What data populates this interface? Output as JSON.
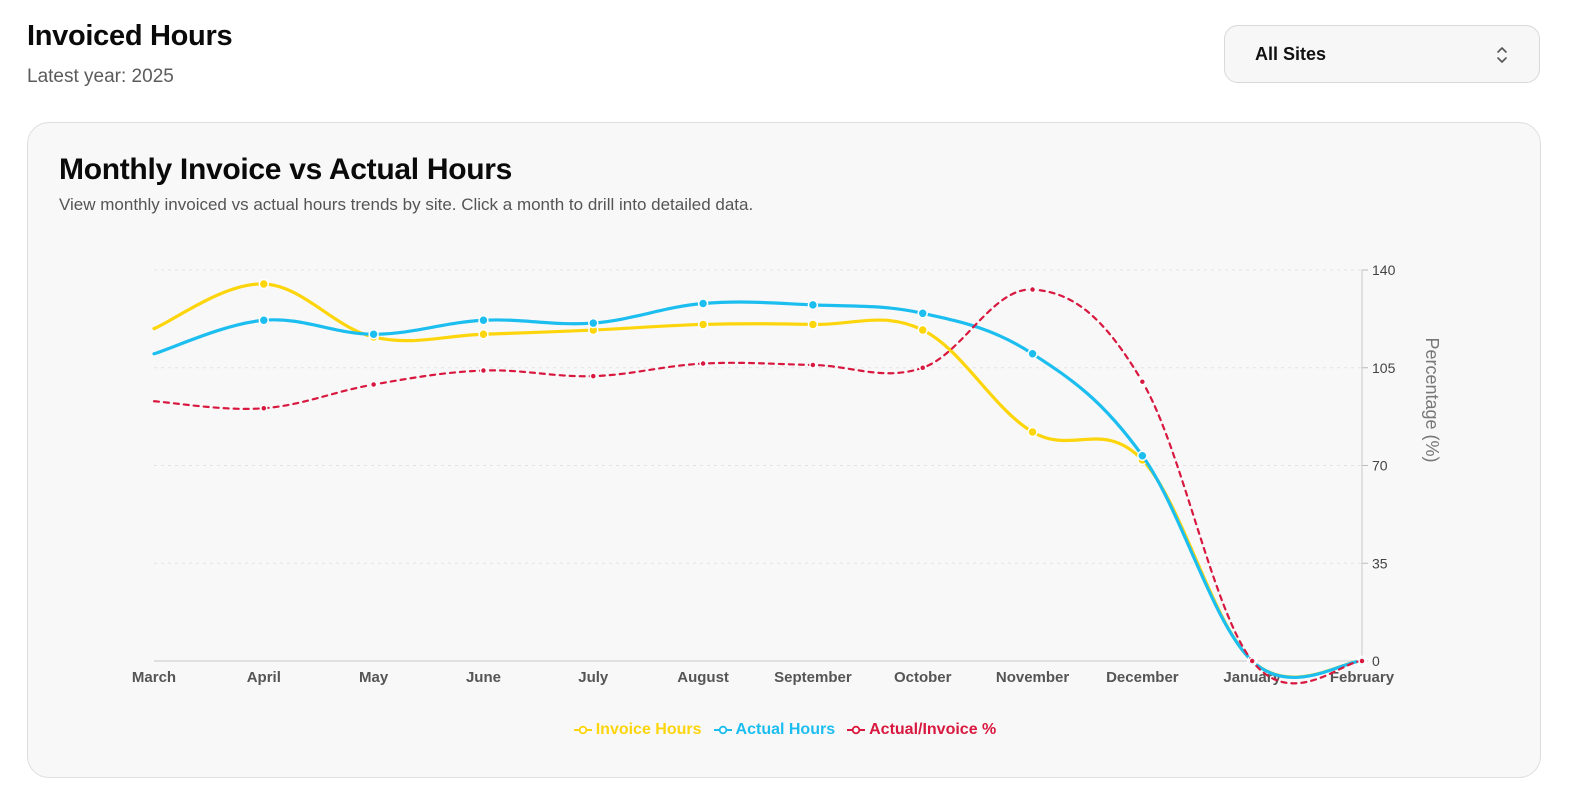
{
  "header": {
    "title": "Invoiced Hours",
    "subtitle": "Latest year: 2025"
  },
  "site_filter": {
    "selected": "All Sites",
    "icon": "chevron-up-down-icon"
  },
  "card": {
    "title": "Monthly Invoice vs Actual Hours",
    "description": "View monthly invoiced vs actual hours trends by site. Click a month to drill into detailed data."
  },
  "chart_data": {
    "type": "line",
    "categories": [
      "March",
      "April",
      "May",
      "June",
      "July",
      "August",
      "September",
      "October",
      "November",
      "December",
      "January",
      "February"
    ],
    "y_right": {
      "label": "Percentage (%)",
      "ticks": [
        0,
        35,
        70,
        105,
        140
      ],
      "lim": [
        0,
        140
      ]
    },
    "grid": "horizontal-dashed",
    "legend_position": "bottom-center",
    "series": [
      {
        "name": "Invoice Hours",
        "color": "#fdd50d",
        "dash": false,
        "values": [
          119,
          135,
          116,
          117,
          118.5,
          120.5,
          120.5,
          118.5,
          82,
          72,
          0,
          0
        ]
      },
      {
        "name": "Actual Hours",
        "color": "#1cbef0",
        "dash": false,
        "values": [
          110,
          122,
          117,
          122,
          121,
          128,
          127.5,
          124.5,
          110,
          73.5,
          0,
          0
        ]
      },
      {
        "name": "Actual/Invoice %",
        "color": "#d8183f",
        "dash": true,
        "values": [
          93,
          90.5,
          99,
          104,
          102,
          106.5,
          106,
          105,
          133,
          100,
          0,
          0
        ]
      }
    ]
  }
}
